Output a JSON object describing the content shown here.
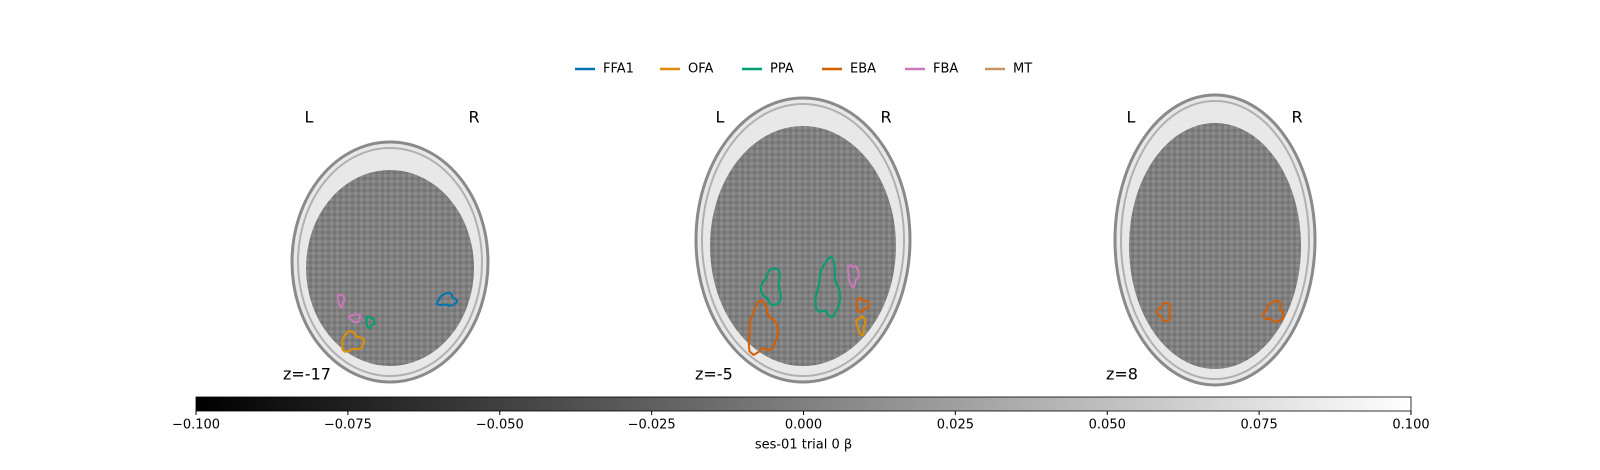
{
  "legend": [
    {
      "name": "FFA1",
      "color": "#0173b2"
    },
    {
      "name": "OFA",
      "color": "#de8f05"
    },
    {
      "name": "PPA",
      "color": "#029e73"
    },
    {
      "name": "EBA",
      "color": "#d55e00"
    },
    {
      "name": "FBA",
      "color": "#cc78bc"
    },
    {
      "name": "MT",
      "color": "#ca9161"
    }
  ],
  "slices": [
    {
      "left": "L",
      "right": "R",
      "label": "z=-17"
    },
    {
      "left": "L",
      "right": "R",
      "label": "z=-5"
    },
    {
      "left": "L",
      "right": "R",
      "label": "z=8"
    }
  ],
  "colorbar": {
    "label": "ses-01 trial 0 β",
    "cmap": [
      "#000000",
      "#ffffff"
    ],
    "lim": [
      -0.1,
      0.1
    ],
    "ticks": [
      {
        "value": -0.1,
        "label": "−0.100"
      },
      {
        "value": -0.075,
        "label": "−0.075"
      },
      {
        "value": -0.05,
        "label": "−0.050"
      },
      {
        "value": -0.025,
        "label": "−0.025"
      },
      {
        "value": 0,
        "label": "0.000"
      },
      {
        "value": 0.025,
        "label": "0.025"
      },
      {
        "value": 0.05,
        "label": "0.050"
      },
      {
        "value": 0.075,
        "label": "0.075"
      },
      {
        "value": 0.1,
        "label": "0.100"
      }
    ]
  }
}
